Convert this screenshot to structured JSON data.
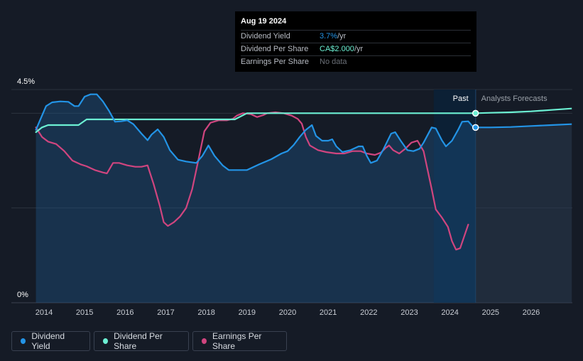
{
  "chart_data": {
    "type": "line",
    "y_axis": {
      "top_label": "4.5%",
      "bottom_label": "0%",
      "min": 0,
      "max": 4.5
    },
    "x_ticks": [
      "2014",
      "2015",
      "2016",
      "2017",
      "2018",
      "2019",
      "2020",
      "2021",
      "2022",
      "2023",
      "2024",
      "2025",
      "2026"
    ],
    "x_range": [
      2013.9,
      2027.0
    ],
    "divider_year": 2024.63,
    "forecast_shade": [
      2023.6,
      2024.63
    ],
    "past_label": "Past",
    "forecast_label": "Analysts Forecasts",
    "colors": {
      "dividend_yield": "#2394e6",
      "dividend_per_share": "#6cf0d3",
      "earnings_per_share": "#d0457f"
    },
    "series": [
      {
        "name": "Dividend Yield",
        "key": "dividend_yield",
        "points": [
          [
            2013.8,
            3.65
          ],
          [
            2013.9,
            3.85
          ],
          [
            2014.05,
            4.15
          ],
          [
            2014.2,
            4.23
          ],
          [
            2014.4,
            4.25
          ],
          [
            2014.6,
            4.24
          ],
          [
            2014.75,
            4.15
          ],
          [
            2014.85,
            4.15
          ],
          [
            2015.0,
            4.35
          ],
          [
            2015.15,
            4.4
          ],
          [
            2015.3,
            4.4
          ],
          [
            2015.45,
            4.25
          ],
          [
            2015.6,
            4.05
          ],
          [
            2015.75,
            3.82
          ],
          [
            2015.9,
            3.83
          ],
          [
            2016.05,
            3.85
          ],
          [
            2016.2,
            3.77
          ],
          [
            2016.4,
            3.57
          ],
          [
            2016.55,
            3.43
          ],
          [
            2016.65,
            3.55
          ],
          [
            2016.8,
            3.66
          ],
          [
            2016.95,
            3.5
          ],
          [
            2017.1,
            3.22
          ],
          [
            2017.3,
            3.02
          ],
          [
            2017.5,
            2.98
          ],
          [
            2017.75,
            2.95
          ],
          [
            2017.9,
            3.1
          ],
          [
            2018.05,
            3.32
          ],
          [
            2018.2,
            3.1
          ],
          [
            2018.4,
            2.9
          ],
          [
            2018.55,
            2.8
          ],
          [
            2018.75,
            2.8
          ],
          [
            2019.0,
            2.8
          ],
          [
            2019.3,
            2.92
          ],
          [
            2019.6,
            3.03
          ],
          [
            2019.85,
            3.15
          ],
          [
            2020.0,
            3.2
          ],
          [
            2020.15,
            3.33
          ],
          [
            2020.3,
            3.5
          ],
          [
            2020.45,
            3.65
          ],
          [
            2020.6,
            3.75
          ],
          [
            2020.7,
            3.52
          ],
          [
            2020.85,
            3.42
          ],
          [
            2021.0,
            3.42
          ],
          [
            2021.1,
            3.45
          ],
          [
            2021.2,
            3.3
          ],
          [
            2021.35,
            3.18
          ],
          [
            2021.55,
            3.22
          ],
          [
            2021.75,
            3.3
          ],
          [
            2021.85,
            3.3
          ],
          [
            2021.95,
            3.1
          ],
          [
            2022.05,
            2.95
          ],
          [
            2022.2,
            3.0
          ],
          [
            2022.35,
            3.22
          ],
          [
            2022.55,
            3.57
          ],
          [
            2022.65,
            3.6
          ],
          [
            2022.8,
            3.4
          ],
          [
            2022.95,
            3.22
          ],
          [
            2023.1,
            3.2
          ],
          [
            2023.25,
            3.25
          ],
          [
            2023.35,
            3.38
          ],
          [
            2023.55,
            3.7
          ],
          [
            2023.65,
            3.68
          ],
          [
            2023.8,
            3.43
          ],
          [
            2023.9,
            3.3
          ],
          [
            2024.05,
            3.42
          ],
          [
            2024.2,
            3.65
          ],
          [
            2024.3,
            3.82
          ],
          [
            2024.45,
            3.83
          ],
          [
            2024.55,
            3.73
          ],
          [
            2024.63,
            3.7
          ]
        ]
      },
      {
        "name": "Dividend Per Share",
        "key": "dividend_per_share",
        "points": [
          [
            2013.8,
            3.6
          ],
          [
            2013.95,
            3.7
          ],
          [
            2014.1,
            3.75
          ],
          [
            2014.85,
            3.75
          ],
          [
            2015.05,
            3.87
          ],
          [
            2015.5,
            3.87
          ],
          [
            2018.7,
            3.87
          ],
          [
            2019.0,
            4.0
          ],
          [
            2024.63,
            4.0
          ]
        ]
      },
      {
        "name": "Earnings Per Share",
        "key": "earnings_per_share",
        "points": [
          [
            2013.8,
            3.7
          ],
          [
            2013.95,
            3.5
          ],
          [
            2014.1,
            3.4
          ],
          [
            2014.3,
            3.35
          ],
          [
            2014.5,
            3.2
          ],
          [
            2014.7,
            3.0
          ],
          [
            2014.9,
            2.92
          ],
          [
            2015.05,
            2.88
          ],
          [
            2015.25,
            2.8
          ],
          [
            2015.45,
            2.75
          ],
          [
            2015.55,
            2.73
          ],
          [
            2015.7,
            2.95
          ],
          [
            2015.85,
            2.95
          ],
          [
            2016.05,
            2.9
          ],
          [
            2016.25,
            2.87
          ],
          [
            2016.4,
            2.87
          ],
          [
            2016.55,
            2.9
          ],
          [
            2016.7,
            2.5
          ],
          [
            2016.85,
            2.05
          ],
          [
            2016.95,
            1.7
          ],
          [
            2017.05,
            1.62
          ],
          [
            2017.2,
            1.7
          ],
          [
            2017.35,
            1.82
          ],
          [
            2017.5,
            2.0
          ],
          [
            2017.65,
            2.4
          ],
          [
            2017.8,
            3.0
          ],
          [
            2017.95,
            3.62
          ],
          [
            2018.1,
            3.8
          ],
          [
            2018.3,
            3.85
          ],
          [
            2018.5,
            3.85
          ],
          [
            2018.65,
            3.88
          ],
          [
            2018.75,
            3.95
          ],
          [
            2018.9,
            4.0
          ],
          [
            2019.1,
            3.98
          ],
          [
            2019.25,
            3.92
          ],
          [
            2019.4,
            3.96
          ],
          [
            2019.5,
            4.0
          ],
          [
            2019.7,
            4.02
          ],
          [
            2019.9,
            4.0
          ],
          [
            2020.1,
            3.95
          ],
          [
            2020.25,
            3.88
          ],
          [
            2020.35,
            3.78
          ],
          [
            2020.45,
            3.5
          ],
          [
            2020.55,
            3.32
          ],
          [
            2020.75,
            3.22
          ],
          [
            2020.95,
            3.18
          ],
          [
            2021.2,
            3.15
          ],
          [
            2021.4,
            3.15
          ],
          [
            2021.6,
            3.2
          ],
          [
            2021.8,
            3.2
          ],
          [
            2021.95,
            3.15
          ],
          [
            2022.15,
            3.12
          ],
          [
            2022.3,
            3.17
          ],
          [
            2022.42,
            3.27
          ],
          [
            2022.5,
            3.32
          ],
          [
            2022.6,
            3.22
          ],
          [
            2022.75,
            3.15
          ],
          [
            2022.9,
            3.25
          ],
          [
            2023.05,
            3.38
          ],
          [
            2023.2,
            3.42
          ],
          [
            2023.35,
            3.2
          ],
          [
            2023.45,
            2.8
          ],
          [
            2023.55,
            2.4
          ],
          [
            2023.65,
            1.97
          ],
          [
            2023.8,
            1.8
          ],
          [
            2023.95,
            1.6
          ],
          [
            2024.05,
            1.3
          ],
          [
            2024.15,
            1.12
          ],
          [
            2024.25,
            1.15
          ],
          [
            2024.35,
            1.4
          ],
          [
            2024.45,
            1.65
          ]
        ]
      }
    ],
    "forecast_series": [
      {
        "key": "dividend_yield",
        "points": [
          [
            2024.63,
            3.7
          ],
          [
            2025.0,
            3.7
          ],
          [
            2025.5,
            3.71
          ],
          [
            2026.0,
            3.73
          ],
          [
            2026.5,
            3.75
          ],
          [
            2027.0,
            3.77
          ]
        ]
      },
      {
        "key": "dividend_per_share",
        "points": [
          [
            2024.63,
            4.0
          ],
          [
            2025.0,
            4.01
          ],
          [
            2025.5,
            4.02
          ],
          [
            2026.0,
            4.04
          ],
          [
            2026.5,
            4.07
          ],
          [
            2027.0,
            4.1
          ]
        ]
      }
    ],
    "highlight_points": [
      {
        "key": "dividend_per_share",
        "x": 2024.63,
        "y": 4.0
      },
      {
        "key": "dividend_yield",
        "x": 2024.63,
        "y": 3.7
      }
    ]
  },
  "tooltip": {
    "date": "Aug 19 2024",
    "rows": [
      {
        "label": "Dividend Yield",
        "value": "3.7%",
        "suffix": " /yr"
      },
      {
        "label": "Dividend Per Share",
        "value": "CA$2.000",
        "suffix": " /yr"
      },
      {
        "label": "Earnings Per Share",
        "value": "No data",
        "suffix": ""
      }
    ]
  },
  "legend": [
    {
      "label": "Dividend Yield",
      "color": "#2394e6"
    },
    {
      "label": "Dividend Per Share",
      "color": "#6cf0d3"
    },
    {
      "label": "Earnings Per Share",
      "color": "#d0457f"
    }
  ]
}
